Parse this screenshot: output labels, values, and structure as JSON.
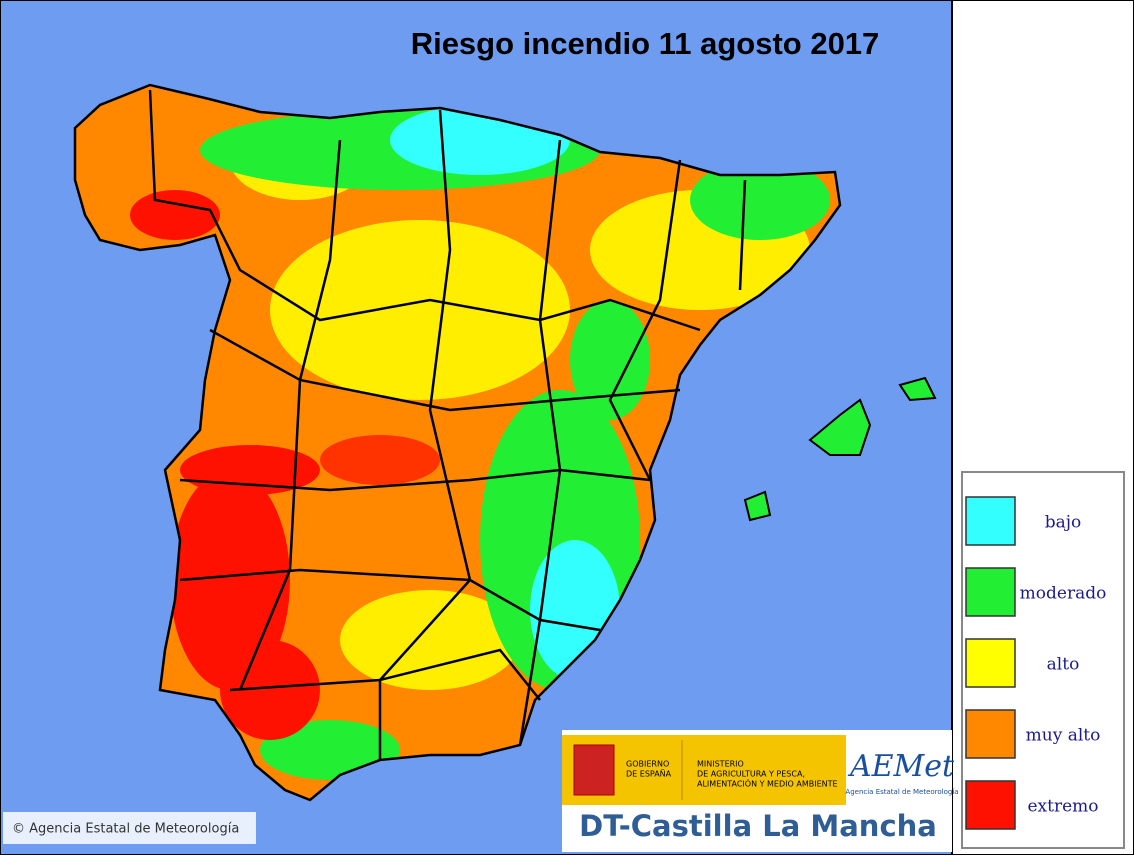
{
  "title": "Riesgo incendio 11 agosto 2017",
  "legend": [
    {
      "label": "bajo",
      "color": "#33ffff"
    },
    {
      "label": "moderado",
      "color": "#22ee33"
    },
    {
      "label": "alto",
      "color": "#ffff00"
    },
    {
      "label": "muy alto",
      "color": "#ff8800"
    },
    {
      "label": "extremo",
      "color": "#ff1100"
    }
  ],
  "copyright": "© Agencia Estatal de Meteorología",
  "logos": {
    "gobierno": [
      "GOBIERNO",
      "DE ESPAÑA"
    ],
    "ministerio": [
      "MINISTERIO",
      "DE AGRICULTURA Y PESCA,",
      "ALIMENTACIÓN Y MEDIO AMBIENTE"
    ],
    "aemet": "AEMet",
    "aemet_sub": "Agencia Estatal de Meteorología"
  },
  "footer": "DT-Castilla La Mancha"
}
